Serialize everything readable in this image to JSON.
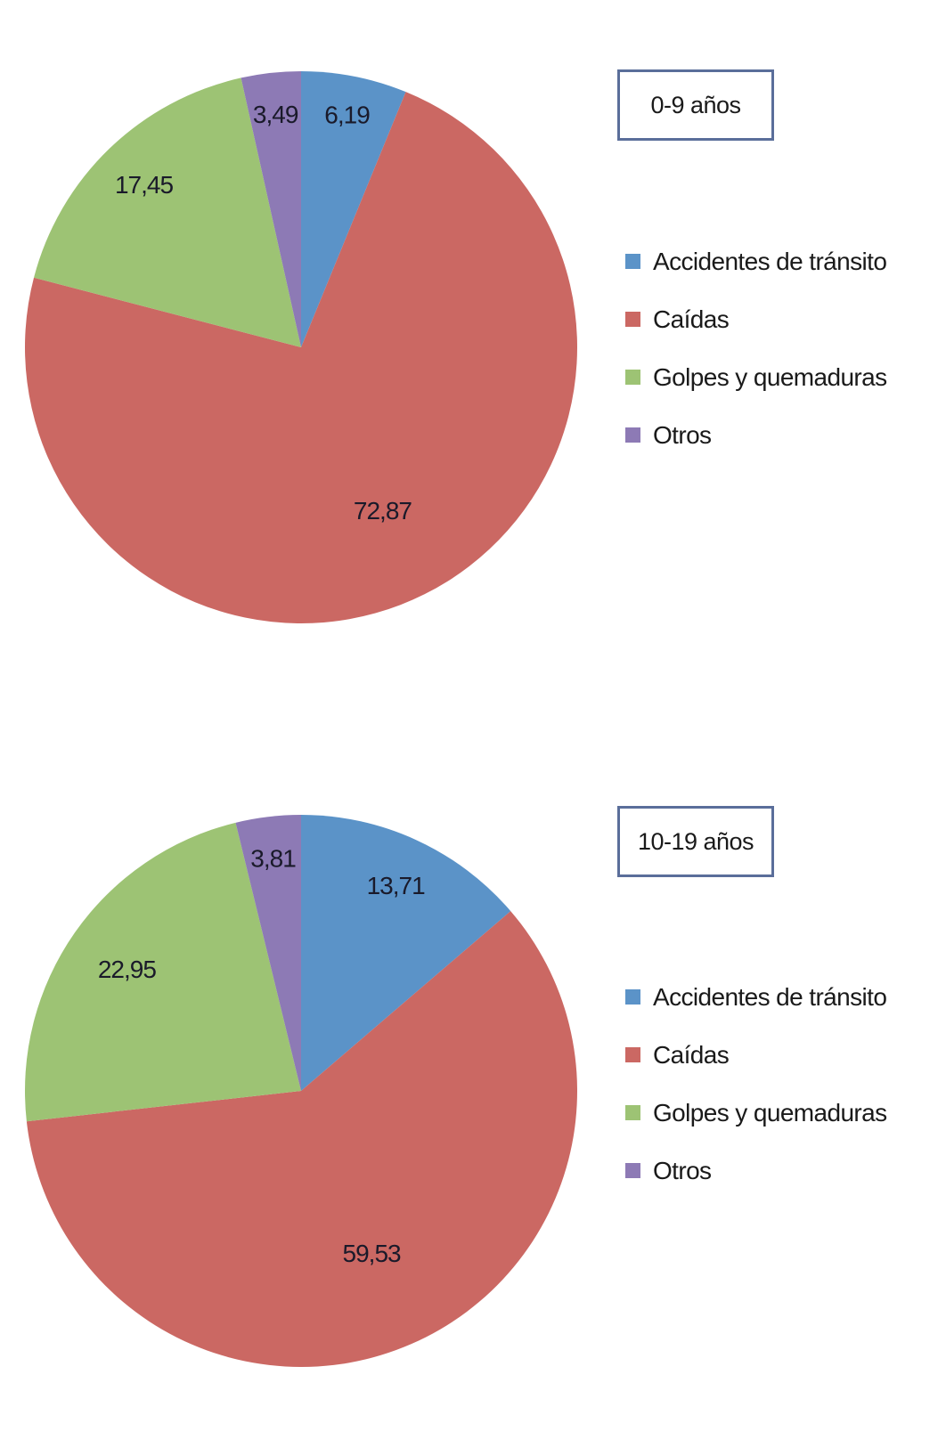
{
  "chart_data": [
    {
      "type": "pie",
      "title": "0-9 años",
      "categories": [
        "Accidentes de tránsito",
        "Caídas",
        "Golpes y quemaduras",
        "Otros"
      ],
      "values": [
        6.19,
        72.87,
        17.45,
        3.49
      ],
      "data_labels": [
        "6,19",
        "72,87",
        "17,45",
        "3,49"
      ],
      "colors": [
        "#5b93c8",
        "#cb6863",
        "#9dc374",
        "#8d7ab5"
      ],
      "legend": "right",
      "start_angle": "top, clockwise"
    },
    {
      "type": "pie",
      "title": "10-19 años",
      "categories": [
        "Accidentes de tránsito",
        "Caídas",
        "Golpes y quemaduras",
        "Otros"
      ],
      "values": [
        13.71,
        59.53,
        22.95,
        3.81
      ],
      "data_labels": [
        "13,71",
        "59,53",
        "22,95",
        "3,81"
      ],
      "colors": [
        "#5b93c8",
        "#cb6863",
        "#9dc374",
        "#8d7ab5"
      ],
      "legend": "right",
      "start_angle": "top, clockwise"
    }
  ]
}
